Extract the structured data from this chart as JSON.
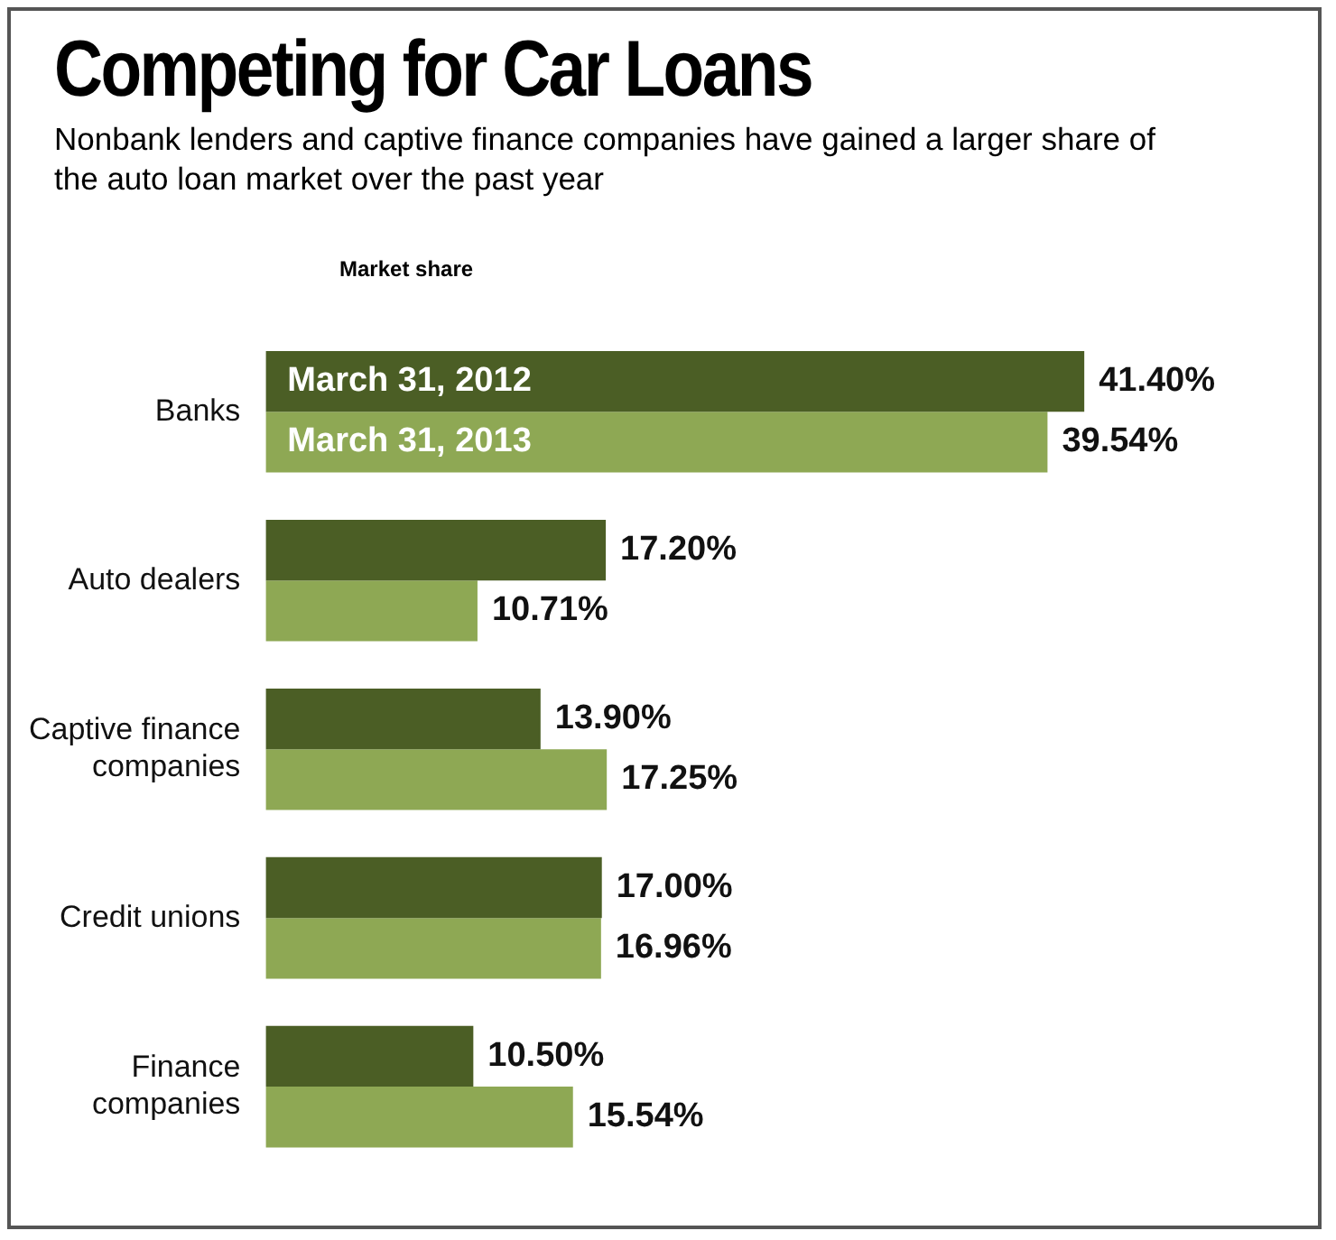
{
  "chart_data": {
    "type": "bar",
    "orientation": "horizontal",
    "title": "Competing for Car Loans",
    "subtitle": "Nonbank lenders and captive finance companies have gained a larger share of the auto loan market over the past  year",
    "annotations": [
      "Market share"
    ],
    "categories": [
      "Banks",
      "Auto dealers",
      "Captive finance companies",
      "Credit unions",
      "Finance companies"
    ],
    "series": [
      {
        "name": "March 31, 2012",
        "color": "#4b5e25",
        "values": [
          41.4,
          17.2,
          13.9,
          17.0,
          10.5
        ],
        "value_labels": [
          "41.40%",
          "17.20%",
          "13.90%",
          "17.00%",
          "10.50%"
        ]
      },
      {
        "name": "March 31, 2013",
        "color": "#8ea854",
        "values": [
          39.54,
          10.71,
          17.25,
          16.96,
          15.54
        ],
        "value_labels": [
          "39.54%",
          "10.71%",
          "17.25%",
          "16.96%",
          "15.54%"
        ]
      }
    ],
    "tick_labels": "y",
    "legend": false
  }
}
